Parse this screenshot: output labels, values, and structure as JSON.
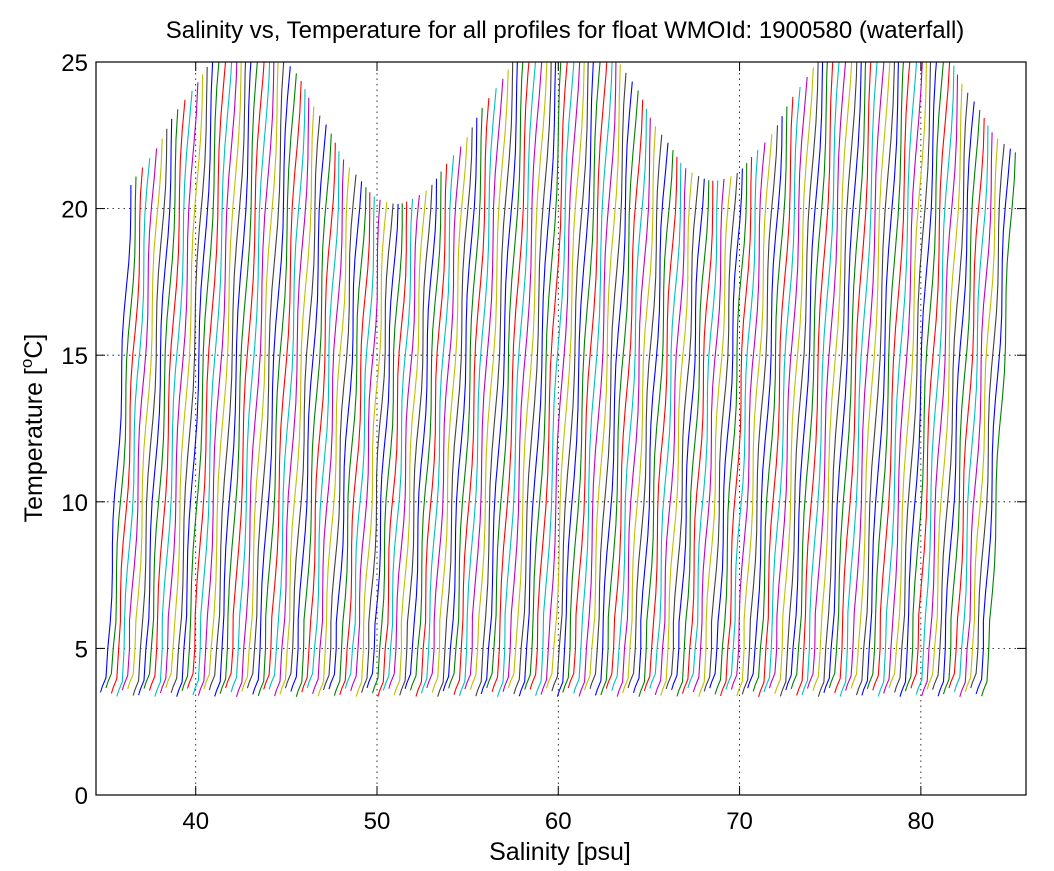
{
  "chart_data": {
    "type": "line",
    "title": "Salinity vs, Temperature for all profiles for float WMOId: 1900580 (waterfall)",
    "xlabel": "Salinity [psu]",
    "ylabel_main": "Temperature [",
    "ylabel_sup": "o",
    "ylabel_end": "C]",
    "xlim": [
      34.5,
      85.8
    ],
    "ylim": [
      0,
      25
    ],
    "x_ticks": [
      40,
      50,
      60,
      70,
      80
    ],
    "x_tick_labels": [
      "40",
      "50",
      "60",
      "70",
      "80"
    ],
    "y_ticks": [
      0,
      5,
      10,
      15,
      20,
      25
    ],
    "y_tick_labels": [
      "0",
      "5",
      "10",
      "15",
      "20",
      "25"
    ],
    "grid": "dotted",
    "legend": "none",
    "waterfall": {
      "profile_count": 163,
      "first_profile_offset_psu": 35.0,
      "profile_offset_step_psu": 0.3,
      "bottom_temperature": 3.7,
      "surface_temperature_range": [
        19.5,
        25.5
      ],
      "color_cycle": [
        "#0000ff",
        "#008000",
        "#ff0000",
        "#00bfbf",
        "#bf00bf",
        "#bfbf00",
        "#404040"
      ]
    }
  }
}
